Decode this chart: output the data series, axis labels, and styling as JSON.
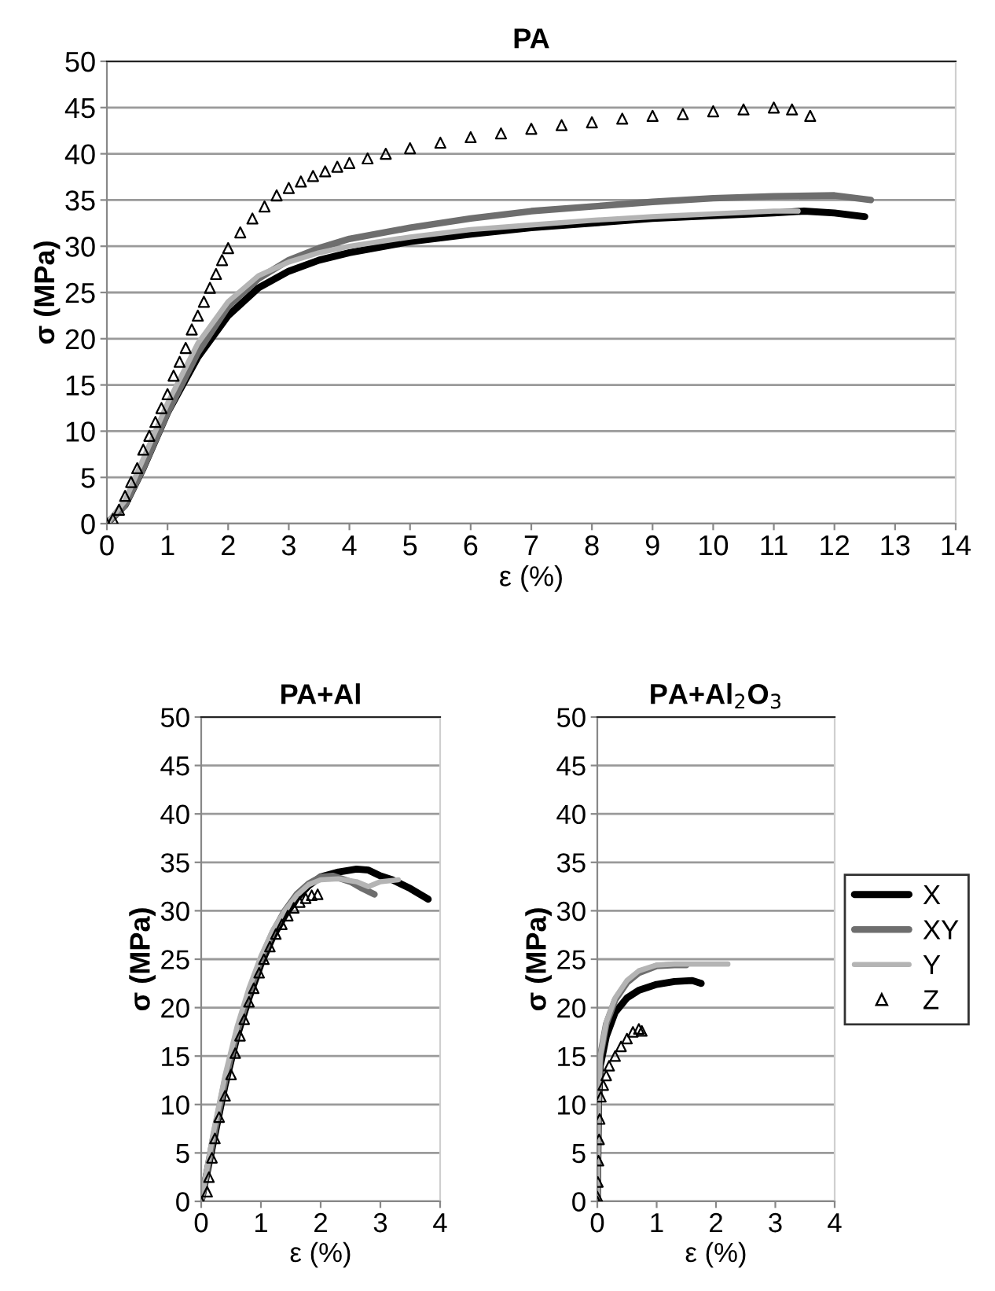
{
  "chart_data": [
    {
      "type": "line",
      "title": "PA",
      "xlabel": "ε (%)",
      "ylabel": "σ (MPa)",
      "xlim": [
        0,
        14
      ],
      "ylim": [
        0,
        50
      ],
      "xticks": [
        0,
        1,
        2,
        3,
        4,
        5,
        6,
        7,
        8,
        9,
        10,
        11,
        12,
        13,
        14
      ],
      "yticks": [
        0,
        5,
        10,
        15,
        20,
        25,
        30,
        35,
        40,
        45,
        50
      ],
      "grid": "y",
      "series": [
        {
          "color": "#000000",
          "x": [
            0,
            0.3,
            0.6,
            1,
            1.5,
            2,
            2.5,
            3,
            3.5,
            4,
            5,
            6,
            7,
            8,
            9,
            10,
            11,
            11.5,
            12,
            12.5
          ],
          "values": [
            0,
            2,
            6,
            12,
            18,
            22.5,
            25.5,
            27.3,
            28.5,
            29.3,
            30.5,
            31.3,
            32,
            32.5,
            33,
            33.3,
            33.6,
            33.8,
            33.6,
            33.2
          ]
        },
        {
          "color": "#6e6e6e",
          "x": [
            0,
            0.3,
            0.6,
            1,
            1.5,
            2,
            2.5,
            3,
            3.5,
            4,
            5,
            6,
            7,
            8,
            9,
            10,
            11,
            12,
            12.6
          ],
          "values": [
            0,
            2,
            6,
            12,
            18.5,
            23.5,
            26.5,
            28.5,
            29.8,
            30.8,
            32,
            33,
            33.8,
            34.3,
            34.8,
            35.2,
            35.4,
            35.5,
            35
          ]
        },
        {
          "color": "#b4b4b4",
          "x": [
            0,
            0.3,
            0.6,
            1,
            1.5,
            2,
            2.5,
            3,
            3.5,
            4,
            5,
            6,
            7,
            8,
            9,
            10,
            11,
            11.4
          ],
          "values": [
            0,
            2.5,
            7,
            13,
            19.5,
            24,
            26.8,
            28.3,
            29.3,
            30,
            31,
            31.8,
            32.3,
            32.8,
            33.2,
            33.5,
            33.8,
            33.8
          ]
        },
        {
          "type": "scatter",
          "marker": "triangle",
          "color": "#000000",
          "x": [
            0,
            0.1,
            0.2,
            0.3,
            0.4,
            0.5,
            0.6,
            0.7,
            0.8,
            0.9,
            1,
            1.1,
            1.2,
            1.3,
            1.4,
            1.5,
            1.6,
            1.7,
            1.8,
            1.9,
            2,
            2.2,
            2.4,
            2.6,
            2.8,
            3,
            3.2,
            3.4,
            3.6,
            3.8,
            4,
            4.3,
            4.6,
            5,
            5.5,
            6,
            6.5,
            7,
            7.5,
            8,
            8.5,
            9,
            9.5,
            10,
            10.5,
            11,
            11.3,
            11.6
          ],
          "values": [
            0,
            0.5,
            1.5,
            3,
            4.5,
            6,
            8,
            9.5,
            11,
            12.5,
            14,
            16,
            17.5,
            19,
            21,
            22.5,
            24,
            25.5,
            27,
            28.5,
            29.8,
            31.5,
            33,
            34.3,
            35.5,
            36.3,
            37,
            37.6,
            38.1,
            38.6,
            39,
            39.5,
            40,
            40.6,
            41.2,
            41.8,
            42.2,
            42.7,
            43.1,
            43.4,
            43.8,
            44.1,
            44.3,
            44.6,
            44.8,
            45,
            44.8,
            44.1
          ]
        }
      ]
    },
    {
      "type": "line",
      "title": "PA+Al",
      "xlabel": "ε (%)",
      "ylabel": "σ (MPa)",
      "xlim": [
        0,
        4
      ],
      "ylim": [
        0,
        50
      ],
      "xticks": [
        0,
        1,
        2,
        3,
        4
      ],
      "yticks": [
        0,
        5,
        10,
        15,
        20,
        25,
        30,
        35,
        40,
        45,
        50
      ],
      "grid": "y",
      "series": [
        {
          "color": "#000000",
          "x": [
            0,
            0.2,
            0.4,
            0.6,
            0.8,
            1,
            1.2,
            1.4,
            1.6,
            1.8,
            2,
            2.3,
            2.6,
            2.8,
            3,
            3.2,
            3.5,
            3.8
          ],
          "values": [
            0,
            6,
            12,
            17,
            21,
            24.5,
            27.3,
            29.5,
            31.3,
            32.6,
            33.5,
            34,
            34.3,
            34.2,
            33.6,
            33.2,
            32.3,
            31.2
          ]
        },
        {
          "color": "#6e6e6e",
          "x": [
            0,
            0.2,
            0.4,
            0.6,
            0.8,
            1,
            1.2,
            1.4,
            1.6,
            1.8,
            2,
            2.2,
            2.5,
            2.7,
            2.9
          ],
          "values": [
            0,
            6.5,
            12.5,
            17.5,
            21.5,
            25,
            27.8,
            30,
            31.7,
            32.8,
            33.5,
            33.6,
            33,
            32.3,
            31.7
          ]
        },
        {
          "color": "#b4b4b4",
          "x": [
            0,
            0.2,
            0.4,
            0.6,
            0.8,
            1,
            1.2,
            1.4,
            1.6,
            1.8,
            2,
            2.3,
            2.6,
            2.8,
            3,
            3.3
          ],
          "values": [
            0,
            7,
            13,
            18,
            22,
            25.3,
            28,
            30,
            31.6,
            32.7,
            33.2,
            33.3,
            33,
            32.5,
            33,
            33.2
          ]
        },
        {
          "type": "scatter",
          "marker": "triangle",
          "color": "#000000",
          "x": [
            0,
            0.1,
            0.13,
            0.18,
            0.23,
            0.3,
            0.4,
            0.5,
            0.57,
            0.65,
            0.72,
            0.8,
            0.88,
            0.97,
            1.05,
            1.15,
            1.25,
            1.35,
            1.45,
            1.55,
            1.65,
            1.75,
            1.85,
            1.95
          ],
          "values": [
            0,
            1,
            2.5,
            4.5,
            6.5,
            8.7,
            10.9,
            13.1,
            15.3,
            17.1,
            18.8,
            20.6,
            22,
            23.6,
            25,
            26.3,
            27.6,
            28.6,
            29.5,
            30.3,
            30.9,
            31.3,
            31.6,
            31.7
          ]
        }
      ]
    },
    {
      "type": "line",
      "title": "PA+Al$_{2}$O$_{3}$",
      "xlabel": "ε (%)",
      "ylabel": "σ (MPa)",
      "xlim": [
        0,
        4
      ],
      "ylim": [
        0,
        50
      ],
      "xticks": [
        0,
        1,
        2,
        3,
        4
      ],
      "yticks": [
        0,
        5,
        10,
        15,
        20,
        25,
        30,
        35,
        40,
        45,
        50
      ],
      "grid": "y",
      "legend": "right",
      "series": [
        {
          "name": "X",
          "color": "#000000",
          "x": [
            0,
            0.02,
            0.05,
            0.15,
            0.3,
            0.5,
            0.7,
            1,
            1.3,
            1.6,
            1.75
          ],
          "values": [
            0,
            10,
            14,
            17,
            19.5,
            21,
            21.8,
            22.4,
            22.7,
            22.8,
            22.5
          ]
        },
        {
          "name": "XY",
          "color": "#6e6e6e",
          "x": [
            0,
            0.02,
            0.05,
            0.15,
            0.3,
            0.5,
            0.7,
            1,
            1.3,
            1.5
          ],
          "values": [
            0,
            11,
            15,
            18.3,
            20.8,
            22.6,
            23.6,
            24.3,
            24.4,
            24.4
          ]
        },
        {
          "name": "Y",
          "color": "#b4b4b4",
          "x": [
            0,
            0.02,
            0.05,
            0.15,
            0.3,
            0.5,
            0.7,
            1,
            1.3,
            1.6,
            2.2
          ],
          "values": [
            0,
            11,
            15,
            18.5,
            21,
            22.8,
            23.8,
            24.4,
            24.5,
            24.5,
            24.5
          ]
        },
        {
          "name": "Z",
          "type": "scatter",
          "marker": "triangle",
          "color": "#000000",
          "x": [
            0,
            0,
            0.01,
            0.02,
            0.03,
            0.04,
            0.06,
            0.1,
            0.15,
            0.2,
            0.3,
            0.4,
            0.5,
            0.6,
            0.7,
            0.75
          ],
          "values": [
            0,
            0.5,
            2,
            4.2,
            6.4,
            8.5,
            10.8,
            12,
            13,
            14,
            15,
            16,
            16.8,
            17.5,
            17.8,
            17.6
          ]
        }
      ]
    }
  ]
}
